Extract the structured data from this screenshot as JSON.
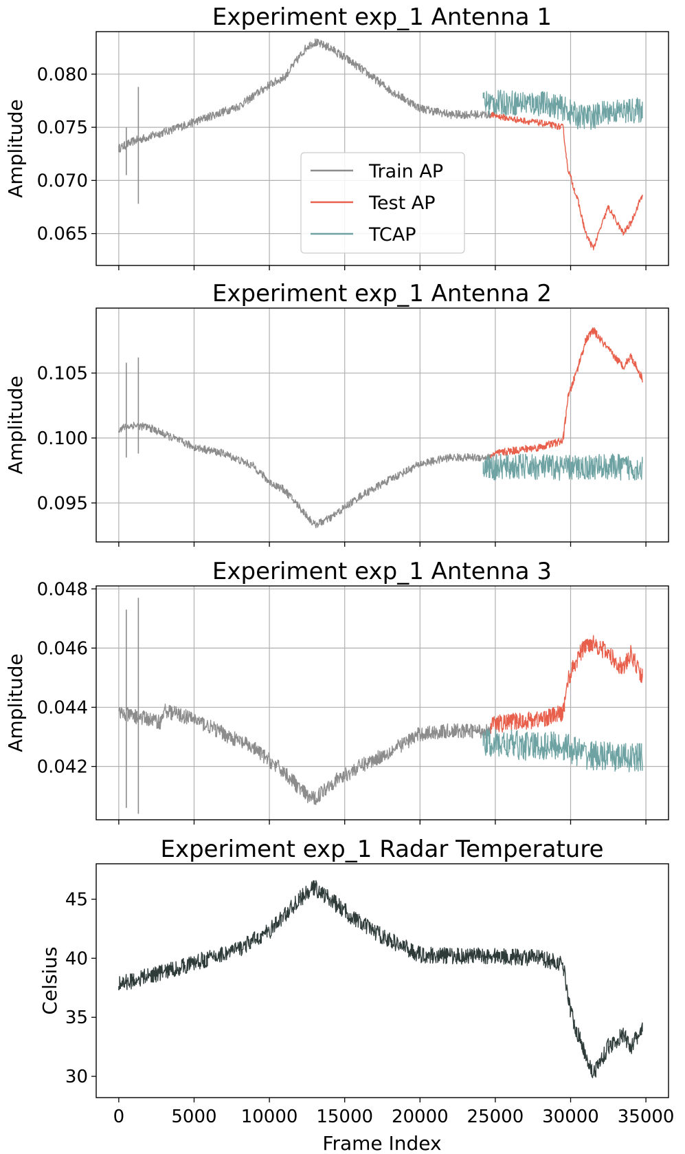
{
  "colors": {
    "train": "#8c8c8c",
    "test": "#e8604c",
    "tcap": "#6fa3a3",
    "temperature": "#2e3b39"
  },
  "chart_data": [
    {
      "type": "line",
      "title": "Experiment exp_1 Antenna 1",
      "xlabel": "",
      "ylabel": "Amplitude",
      "xlim": [
        -1500,
        36500
      ],
      "ylim": [
        0.062,
        0.084
      ],
      "xticks": [
        0,
        5000,
        10000,
        15000,
        20000,
        25000,
        30000,
        35000
      ],
      "yticks": [
        0.065,
        0.07,
        0.075,
        0.08
      ],
      "ytick_labels": [
        "0.065",
        "0.070",
        "0.075",
        "0.080"
      ],
      "grid": true,
      "legend": {
        "position": "center",
        "entries": [
          "Train AP",
          "Test AP",
          "TCAP"
        ]
      },
      "series": [
        {
          "name": "Train AP",
          "x": [
            0,
            1000,
            2000,
            4000,
            6000,
            8000,
            10000,
            11000,
            12500,
            13000,
            14000,
            16000,
            18000,
            20000,
            22000,
            24000,
            24700
          ],
          "values": [
            0.073,
            0.0737,
            0.0741,
            0.075,
            0.076,
            0.077,
            0.079,
            0.0797,
            0.0826,
            0.083,
            0.0825,
            0.0806,
            0.0785,
            0.0768,
            0.0762,
            0.0762,
            0.0762
          ],
          "noise": 0.0004
        },
        {
          "name": "Test AP",
          "x": [
            24700,
            26000,
            28000,
            29500,
            29800,
            30500,
            31000,
            31500,
            32500,
            33500,
            34000,
            34800
          ],
          "values": [
            0.0762,
            0.0758,
            0.0754,
            0.075,
            0.0712,
            0.068,
            0.065,
            0.0636,
            0.0675,
            0.065,
            0.066,
            0.0688
          ],
          "noise": 0.0003
        },
        {
          "name": "TCAP",
          "x": [
            24200,
            27000,
            28500,
            29500,
            30500,
            31500,
            32500,
            33500,
            34800
          ],
          "values": [
            0.0773,
            0.0773,
            0.0772,
            0.0768,
            0.076,
            0.076,
            0.0765,
            0.0765,
            0.0766
          ],
          "noise": 0.0012
        }
      ],
      "spikes": [
        {
          "x": 500,
          "lo": 0.0705,
          "hi": 0.075
        },
        {
          "x": 1300,
          "lo": 0.0678,
          "hi": 0.0788
        }
      ]
    },
    {
      "type": "line",
      "title": "Experiment exp_1 Antenna 2",
      "xlabel": "",
      "ylabel": "Amplitude",
      "xlim": [
        -1500,
        36500
      ],
      "ylim": [
        0.092,
        0.11
      ],
      "xticks": [
        0,
        5000,
        10000,
        15000,
        20000,
        25000,
        30000,
        35000
      ],
      "yticks": [
        0.095,
        0.1,
        0.105
      ],
      "ytick_labels": [
        "0.095",
        "0.100",
        "0.105"
      ],
      "grid": true,
      "series": [
        {
          "name": "Train AP",
          "x": [
            0,
            1000,
            2000,
            3000,
            5000,
            7000,
            9000,
            10000,
            11000,
            12500,
            13000,
            14000,
            16000,
            18000,
            20000,
            22000,
            24700
          ],
          "values": [
            0.1007,
            0.101,
            0.1008,
            0.1003,
            0.0993,
            0.0988,
            0.0978,
            0.0966,
            0.096,
            0.094,
            0.0933,
            0.0938,
            0.0955,
            0.0968,
            0.098,
            0.0985,
            0.0985
          ],
          "noise": 0.0003
        },
        {
          "name": "Test AP",
          "x": [
            24700,
            26000,
            28000,
            29500,
            29800,
            30500,
            31000,
            31500,
            32500,
            33500,
            34000,
            34800
          ],
          "values": [
            0.0987,
            0.099,
            0.0993,
            0.0998,
            0.103,
            0.1055,
            0.1075,
            0.1083,
            0.1068,
            0.1055,
            0.1063,
            0.1045
          ],
          "noise": 0.0003
        },
        {
          "name": "TCAP",
          "x": [
            24200,
            27000,
            30000,
            32000,
            34800
          ],
          "values": [
            0.0977,
            0.0978,
            0.0977,
            0.0978,
            0.0977
          ],
          "noise": 0.001
        }
      ],
      "spikes": [
        {
          "x": 500,
          "lo": 0.0985,
          "hi": 0.1058
        },
        {
          "x": 1300,
          "lo": 0.0988,
          "hi": 0.1062
        }
      ]
    },
    {
      "type": "line",
      "title": "Experiment exp_1 Antenna 3",
      "xlabel": "",
      "ylabel": "Amplitude",
      "xlim": [
        -1500,
        36500
      ],
      "ylim": [
        0.0402,
        0.0481
      ],
      "xticks": [
        0,
        5000,
        10000,
        15000,
        20000,
        25000,
        30000,
        35000
      ],
      "yticks": [
        0.042,
        0.044,
        0.046,
        0.048
      ],
      "ytick_labels": [
        "0.042",
        "0.044",
        "0.046",
        "0.048"
      ],
      "grid": true,
      "series": [
        {
          "name": "Train AP",
          "x": [
            0,
            1000,
            2000,
            2800,
            3000,
            5000,
            7000,
            9000,
            10000,
            11000,
            12500,
            13000,
            14000,
            16000,
            18000,
            20000,
            22000,
            24700
          ],
          "values": [
            0.0438,
            0.0437,
            0.0436,
            0.0435,
            0.0439,
            0.0436,
            0.0431,
            0.0426,
            0.0422,
            0.0418,
            0.041,
            0.0409,
            0.0414,
            0.042,
            0.0425,
            0.0431,
            0.0432,
            0.0432
          ],
          "noise": 0.00025
        },
        {
          "name": "Test AP",
          "x": [
            24700,
            26000,
            28000,
            29500,
            29800,
            30500,
            31000,
            31500,
            32500,
            33500,
            34000,
            34800
          ],
          "values": [
            0.0434,
            0.0435,
            0.0436,
            0.0438,
            0.0449,
            0.0457,
            0.0461,
            0.0462,
            0.0458,
            0.0453,
            0.0458,
            0.045
          ],
          "noise": 0.0003
        },
        {
          "name": "TCAP",
          "x": [
            24200,
            27000,
            29500,
            31000,
            33000,
            34800
          ],
          "values": [
            0.0428,
            0.0427,
            0.0427,
            0.0424,
            0.0423,
            0.0423
          ],
          "noise": 0.0005
        }
      ],
      "spikes": [
        {
          "x": 500,
          "lo": 0.0406,
          "hi": 0.0473
        },
        {
          "x": 1300,
          "lo": 0.0404,
          "hi": 0.0477
        }
      ]
    },
    {
      "type": "line",
      "title": "Experiment exp_1 Radar Temperature",
      "xlabel": "Frame Index",
      "ylabel": "Celsius",
      "xlim": [
        -1500,
        36500
      ],
      "ylim": [
        28.2,
        48.0
      ],
      "xticks": [
        0,
        5000,
        10000,
        15000,
        20000,
        25000,
        30000,
        35000
      ],
      "xtick_labels": [
        "0",
        "5000",
        "10000",
        "15000",
        "20000",
        "25000",
        "30000",
        "35000"
      ],
      "yticks": [
        30,
        35,
        40,
        45
      ],
      "ytick_labels": [
        "30",
        "35",
        "40",
        "45"
      ],
      "grid": false,
      "series": [
        {
          "name": "Temperature",
          "x": [
            0,
            2000,
            4000,
            6000,
            8000,
            10000,
            12000,
            13000,
            14000,
            16000,
            18000,
            20000,
            22000,
            25000,
            28000,
            29500,
            30000,
            30500,
            31500,
            32500,
            33500,
            34000,
            34800
          ],
          "values": [
            37.8,
            38.5,
            39.2,
            40.0,
            40.8,
            42.3,
            45.0,
            46.0,
            45.0,
            43.0,
            41.5,
            40.3,
            40.2,
            40.2,
            40.0,
            39.5,
            35.5,
            33.5,
            30.2,
            32.5,
            33.5,
            32.5,
            34.0
          ],
          "noise": 0.7
        }
      ]
    }
  ]
}
